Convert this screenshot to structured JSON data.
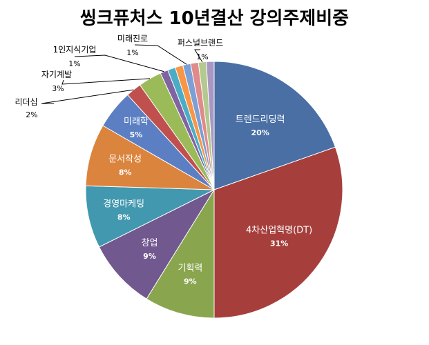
{
  "chart_data": {
    "type": "pie",
    "title": "씽크퓨처스 10년결산 강의주제비중",
    "slices": [
      {
        "label": "트렌드리딩력",
        "value": 20,
        "pct_label": "20%",
        "color": "#4A6FA5"
      },
      {
        "label": "4차산업혁명(DT)",
        "value": 31,
        "pct_label": "31%",
        "color": "#A63F3C"
      },
      {
        "label": "기획력",
        "value": 9,
        "pct_label": "9%",
        "color": "#89A54E"
      },
      {
        "label": "창업",
        "value": 9,
        "pct_label": "9%",
        "color": "#71588F"
      },
      {
        "label": "경영마케팅",
        "value": 8,
        "pct_label": "8%",
        "color": "#4198AF"
      },
      {
        "label": "문서작성",
        "value": 8,
        "pct_label": "8%",
        "color": "#DB843D"
      },
      {
        "label": "미래학",
        "value": 5,
        "pct_label": "5%",
        "color": "#5B7FC2"
      },
      {
        "label": "리더십",
        "value": 2,
        "pct_label": "2%",
        "color": "#C0504D"
      },
      {
        "label": "자기계발",
        "value": 3,
        "pct_label": "3%",
        "color": "#9BBB59"
      },
      {
        "label": "1인지식기업",
        "value": 1,
        "pct_label": "1%",
        "color": "#8064A2"
      },
      {
        "label": "",
        "value": 1,
        "pct_label": "",
        "color": "#4BACC6"
      },
      {
        "label": "",
        "value": 1,
        "pct_label": "",
        "color": "#F79646"
      },
      {
        "label": "미래진로",
        "value": 1,
        "pct_label": "1%",
        "color": "#7C9FD6"
      },
      {
        "label": "",
        "value": 1,
        "pct_label": "",
        "color": "#E08B8B"
      },
      {
        "label": "퍼스널브랜드",
        "value": 1,
        "pct_label": "1%",
        "color": "#B4C98E"
      },
      {
        "label": "",
        "value": 1,
        "pct_label": "",
        "color": "#A897C3"
      }
    ]
  }
}
